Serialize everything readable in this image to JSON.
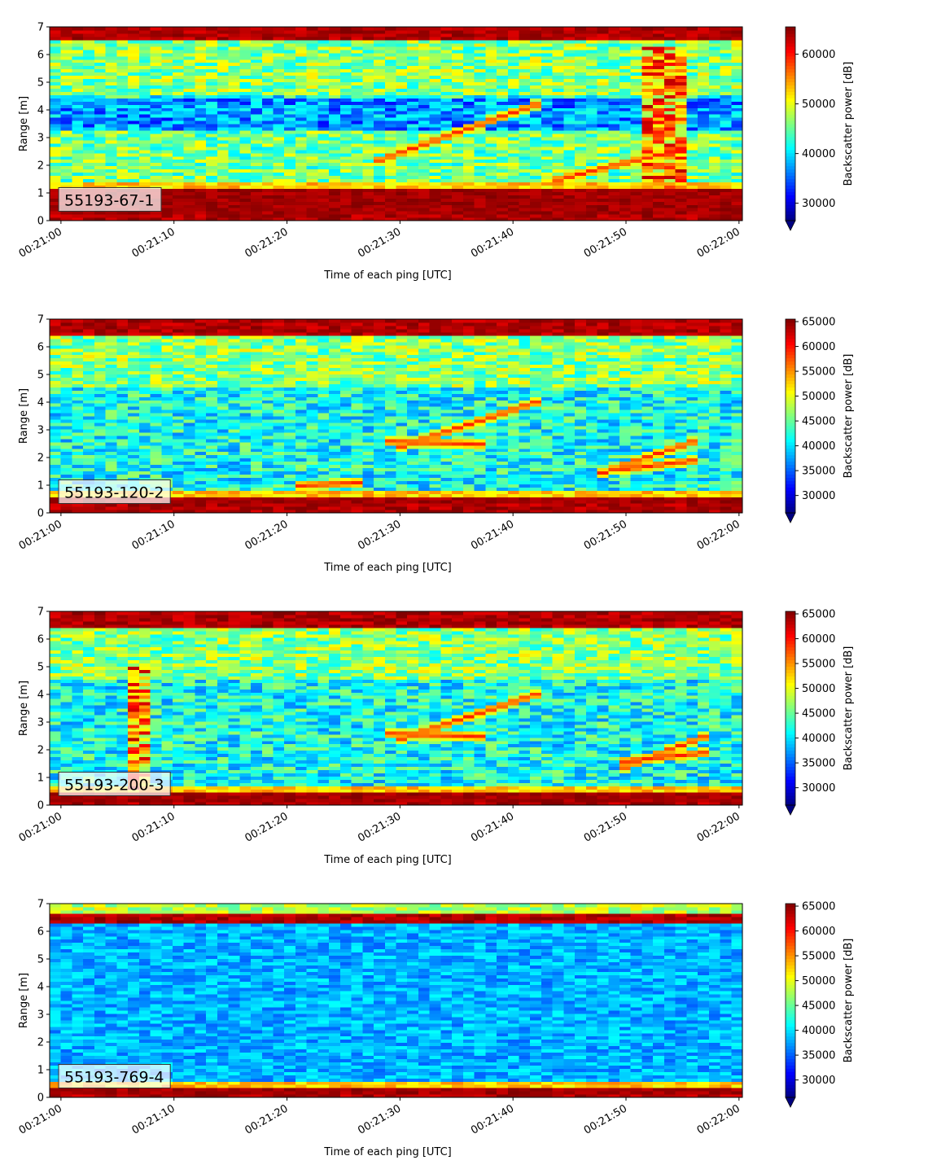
{
  "chart_data": [
    {
      "type": "heatmap",
      "label": "55193-67-1",
      "xlabel": "Time of each ping [UTC]",
      "ylabel": "Range [m]",
      "x_ticks": [
        "00:21:00",
        "00:21:10",
        "00:21:20",
        "00:21:30",
        "00:21:40",
        "00:21:50",
        "00:22:00"
      ],
      "xlim_seconds": [
        -1,
        60.3
      ],
      "ylim": [
        0,
        7
      ],
      "y_ticks": [
        0,
        1,
        2,
        3,
        4,
        5,
        6,
        7
      ],
      "colorbar": {
        "label": "Backscatter power [dB]",
        "ticks": [
          30000,
          40000,
          50000,
          60000
        ],
        "range": [
          26500,
          65500
        ],
        "extend": "min"
      },
      "features": {
        "bottom_band": [
          0.25,
          1.15
        ],
        "surface_band": [
          6.55,
          7.0
        ],
        "dark_layer": [
          3.3,
          4.4
        ],
        "tracks": [
          {
            "t": [
              27.5,
              42
            ],
            "r": [
              2.1,
              4.2
            ]
          },
          {
            "t": [
              44,
              54
            ],
            "r": [
              1.5,
              2.5
            ]
          }
        ],
        "plume": {
          "t": [
            51.5,
            55.5
          ],
          "r": [
            1.0,
            6.3
          ]
        }
      }
    },
    {
      "type": "heatmap",
      "label": "55193-120-2",
      "xlabel": "Time of each ping [UTC]",
      "ylabel": "Range [m]",
      "x_ticks": [
        "00:21:00",
        "00:21:10",
        "00:21:20",
        "00:21:30",
        "00:21:40",
        "00:21:50",
        "00:22:00"
      ],
      "xlim_seconds": [
        -1,
        60.3
      ],
      "ylim": [
        0,
        7
      ],
      "y_ticks": [
        0,
        1,
        2,
        3,
        4,
        5,
        6,
        7
      ],
      "colorbar": {
        "label": "Backscatter power [dB]",
        "ticks": [
          30000,
          35000,
          40000,
          45000,
          50000,
          55000,
          60000,
          65000
        ],
        "range": [
          26500,
          65500
        ],
        "extend": "min"
      },
      "features": {
        "bottom_band": [
          0.3,
          0.6
        ],
        "surface_band": [
          6.4,
          7.0
        ],
        "tracks": [
          {
            "t": [
              30,
              42
            ],
            "r": [
              2.4,
              4.0
            ]
          },
          {
            "t": [
              29,
              37
            ],
            "r": [
              2.6,
              2.5
            ]
          },
          {
            "t": [
              47.5,
              56
            ],
            "r": [
              1.4,
              2.6
            ]
          },
          {
            "t": [
              50,
              56
            ],
            "r": [
              1.6,
              1.9
            ]
          },
          {
            "t": [
              21,
              26
            ],
            "r": [
              1.0,
              1.1
            ]
          }
        ]
      }
    },
    {
      "type": "heatmap",
      "label": "55193-200-3",
      "xlabel": "Time of each ping [UTC]",
      "ylabel": "Range [m]",
      "x_ticks": [
        "00:21:00",
        "00:21:10",
        "00:21:20",
        "00:21:30",
        "00:21:40",
        "00:21:50",
        "00:22:00"
      ],
      "xlim_seconds": [
        -1,
        60.3
      ],
      "ylim": [
        0,
        7
      ],
      "y_ticks": [
        0,
        1,
        2,
        3,
        4,
        5,
        6,
        7
      ],
      "colorbar": {
        "label": "Backscatter power [dB]",
        "ticks": [
          30000,
          35000,
          40000,
          45000,
          50000,
          55000,
          60000,
          65000
        ],
        "range": [
          26500,
          65500
        ],
        "extend": "min"
      },
      "features": {
        "bottom_band": [
          0.15,
          0.5
        ],
        "surface_band": [
          6.45,
          7.0
        ],
        "tracks": [
          {
            "t": [
              30,
              42
            ],
            "r": [
              2.4,
              4.0
            ]
          },
          {
            "t": [
              29,
              37
            ],
            "r": [
              2.6,
              2.5
            ]
          },
          {
            "t": [
              50,
              57
            ],
            "r": [
              1.4,
              2.5
            ]
          },
          {
            "t": [
              50,
              57
            ],
            "r": [
              1.6,
              1.9
            ]
          }
        ],
        "plume": {
          "t": [
            5.5,
            7.5
          ],
          "r": [
            0.5,
            5.0
          ]
        }
      }
    },
    {
      "type": "heatmap",
      "label": "55193-769-4",
      "xlabel": "Time of each ping [UTC]",
      "ylabel": "Range [m]",
      "x_ticks": [
        "00:21:00",
        "00:21:10",
        "00:21:20",
        "00:21:30",
        "00:21:40",
        "00:21:50",
        "00:22:00"
      ],
      "xlim_seconds": [
        -1,
        60.3
      ],
      "ylim": [
        0,
        7
      ],
      "y_ticks": [
        0,
        1,
        2,
        3,
        4,
        5,
        6,
        7
      ],
      "colorbar": {
        "label": "Backscatter power [dB]",
        "ticks": [
          30000,
          35000,
          40000,
          45000,
          50000,
          55000,
          60000,
          65000
        ],
        "range": [
          26500,
          65500
        ],
        "extend": "min"
      },
      "features": {
        "bottom_band": [
          0.15,
          0.35
        ],
        "surface_band": [
          6.35,
          6.6
        ],
        "tracks": []
      }
    }
  ]
}
